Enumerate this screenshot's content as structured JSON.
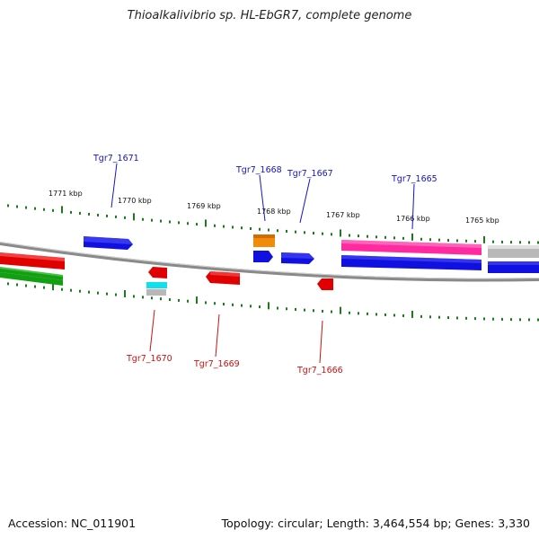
{
  "title": "Thioalkalivibrio sp. HL-EbGR7, complete genome",
  "footer": {
    "accession": "Accession: NC_011901",
    "summary": "Topology: circular; Length: 3,464,554 bp; Genes: 3,330"
  },
  "colors": {
    "tick": "#1e7a1e",
    "backbone": "#8a8a8a",
    "label_top": "#1414c8",
    "label_bottom": "#cc1111",
    "blue": "#1010e0",
    "red": "#e00000",
    "green": "#12a012",
    "orange": "#f08c0a",
    "cyan": "#10e0ee",
    "grey": "#b8b8b8",
    "pink": "#ff2aa0"
  },
  "kbp_labels": [
    "1771 kbp",
    "1770 kbp",
    "1769 kbp",
    "1768 kbp",
    "1767 kbp",
    "1766 kbp",
    "1765 kbp"
  ],
  "gene_labels": {
    "top": [
      "Tgr7_1671",
      "Tgr7_1668",
      "Tgr7_1667",
      "Tgr7_1665"
    ],
    "bottom": [
      "Tgr7_1670",
      "Tgr7_1669",
      "Tgr7_1666"
    ]
  }
}
